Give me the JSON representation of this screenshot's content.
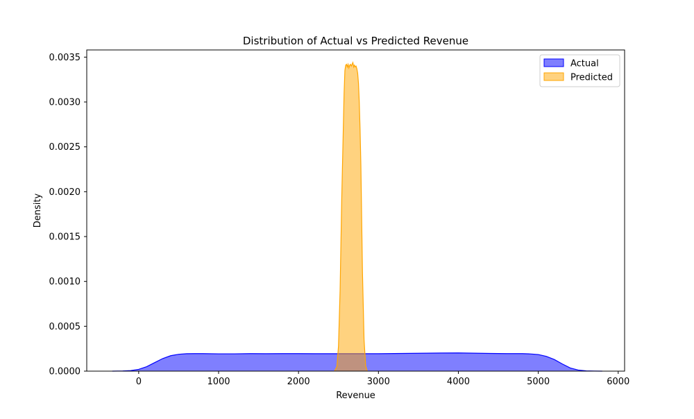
{
  "chart_data": {
    "type": "area",
    "title": "Distribution of Actual vs Predicted Revenue",
    "xlabel": "Revenue",
    "ylabel": "Density",
    "xlim": [
      -650,
      6080
    ],
    "ylim": [
      0,
      0.00358
    ],
    "xticks": [
      0,
      1000,
      2000,
      3000,
      4000,
      5000,
      6000
    ],
    "yticks": [
      0.0,
      0.0005,
      0.001,
      0.0015,
      0.002,
      0.0025,
      0.003,
      0.0035
    ],
    "ytick_labels": [
      "0.0000",
      "0.0005",
      "0.0010",
      "0.0015",
      "0.0020",
      "0.0025",
      "0.0030",
      "0.0035"
    ],
    "grid": false,
    "legend_position": "top-right",
    "series": [
      {
        "name": "Actual",
        "color": "#0000ff",
        "fill": "#7f7ffe",
        "fill_opacity": 1,
        "x": [
          -330,
          -200,
          -100,
          0,
          100,
          200,
          300,
          400,
          500,
          600,
          700,
          800,
          1000,
          1200,
          1400,
          1600,
          1800,
          2000,
          2200,
          2400,
          2600,
          2800,
          3000,
          3200,
          3400,
          3600,
          3800,
          4000,
          4200,
          4400,
          4600,
          4800,
          4900,
          5000,
          5100,
          5200,
          5300,
          5400,
          5500,
          5600,
          5700,
          5800
        ],
        "y": [
          0.0,
          2e-06,
          6e-06,
          2e-05,
          5e-05,
          9.5e-05,
          0.00014,
          0.000172,
          0.000188,
          0.000194,
          0.000195,
          0.000195,
          0.000193,
          0.000193,
          0.000195,
          0.000194,
          0.000195,
          0.000195,
          0.000194,
          0.000194,
          0.000194,
          0.000194,
          0.000194,
          0.000196,
          0.000198,
          0.0002,
          0.000202,
          0.000203,
          0.0002,
          0.000197,
          0.000195,
          0.000195,
          0.000192,
          0.000185,
          0.000165,
          0.00013,
          8e-05,
          3.5e-05,
          1.2e-05,
          3e-06,
          1e-06,
          0.0
        ]
      },
      {
        "name": "Predicted",
        "color": "#ffa500",
        "fill": "#ffa500",
        "fill_opacity": 0.5,
        "x": [
          2450,
          2480,
          2500,
          2520,
          2540,
          2560,
          2570,
          2580,
          2590,
          2600,
          2610,
          2620,
          2630,
          2640,
          2650,
          2660,
          2670,
          2680,
          2690,
          2700,
          2710,
          2720,
          2730,
          2740,
          2750,
          2760,
          2770,
          2780,
          2790,
          2800,
          2820,
          2840,
          2860
        ],
        "y": [
          0.0,
          5e-05,
          0.00028,
          0.0009,
          0.0019,
          0.0027,
          0.0031,
          0.00335,
          0.00341,
          0.00342,
          0.00339,
          0.00342,
          0.00338,
          0.00341,
          0.00342,
          0.0034,
          0.00342,
          0.00344,
          0.00339,
          0.00341,
          0.00339,
          0.0034,
          0.00337,
          0.00332,
          0.00321,
          0.003,
          0.0027,
          0.0023,
          0.0017,
          0.0011,
          0.00035,
          6e-05,
          0.0
        ]
      }
    ]
  }
}
